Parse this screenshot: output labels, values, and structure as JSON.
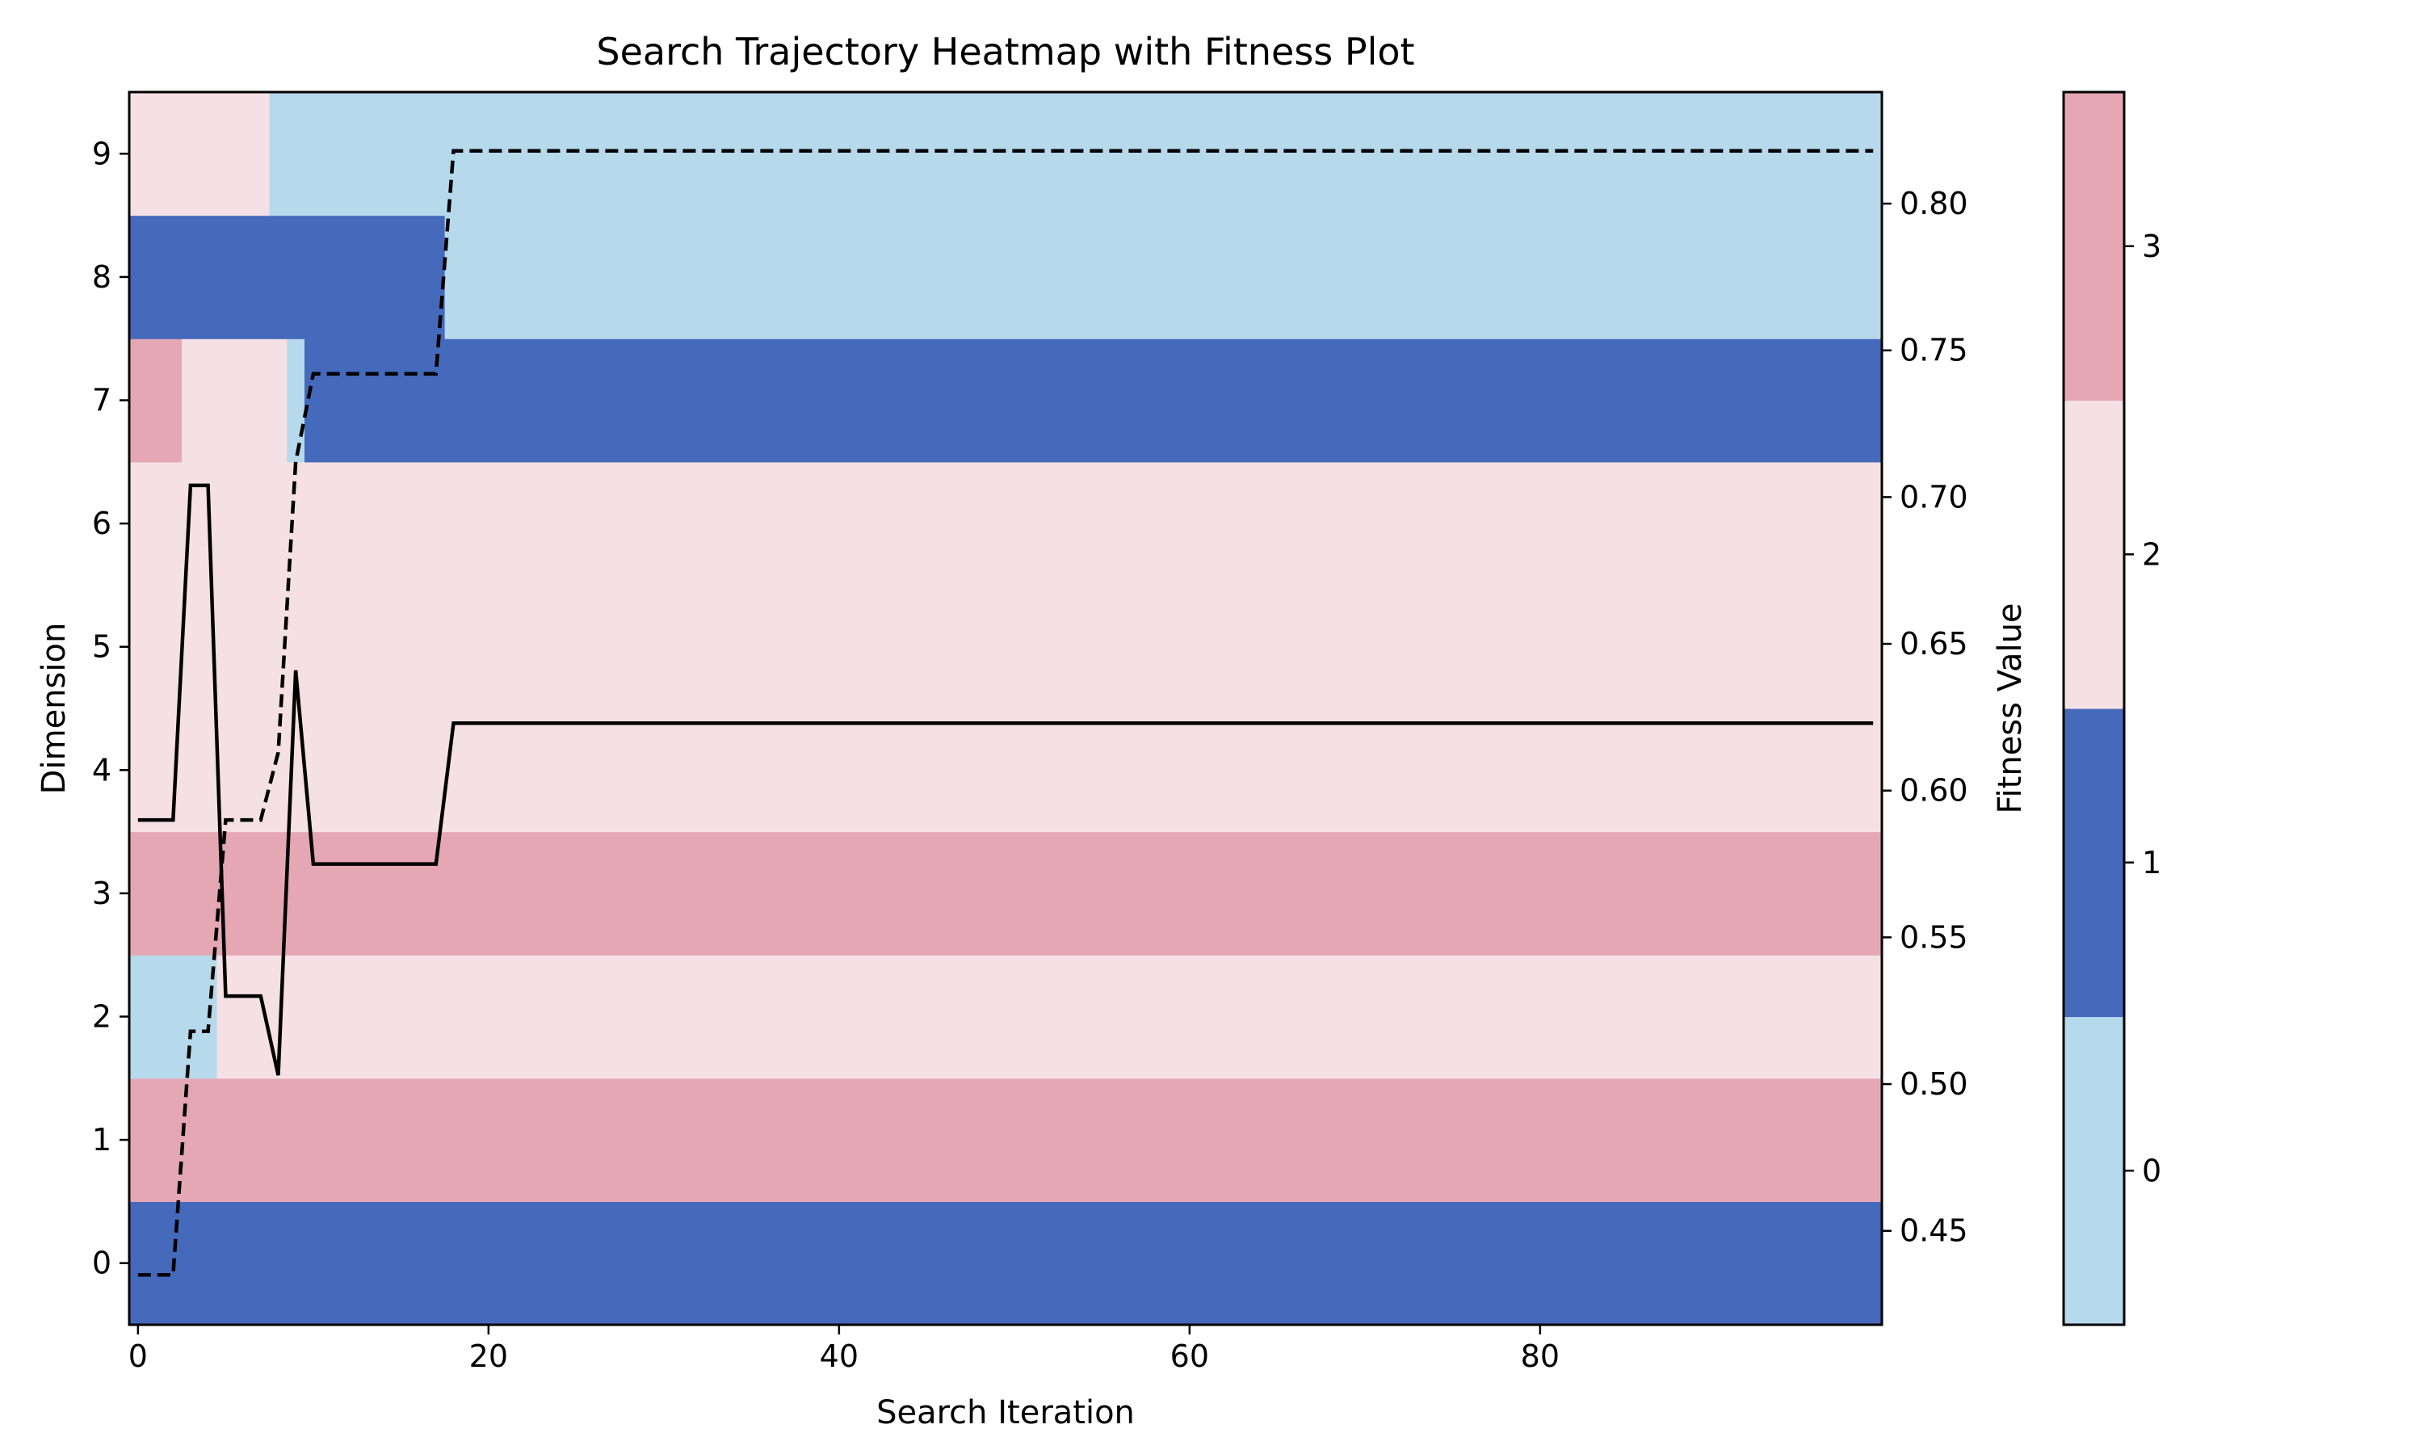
{
  "chart_data": {
    "type": "heatmap",
    "title": "Search Trajectory Heatmap with Fitness Plot",
    "xlabel": "Search Iteration",
    "ylabel": "Dimension",
    "y2label": "Fitness Value",
    "xlim": [
      -0.5,
      99.5
    ],
    "ylim": [
      -0.5,
      9.5
    ],
    "y2lim": [
      0.418,
      0.838
    ],
    "x_ticks": [
      0,
      20,
      40,
      60,
      80
    ],
    "y_ticks": [
      0,
      1,
      2,
      3,
      4,
      5,
      6,
      7,
      8,
      9
    ],
    "y2_ticks": [
      0.45,
      0.5,
      0.55,
      0.6,
      0.65,
      0.7,
      0.75,
      0.8
    ],
    "y2_tick_labels": [
      "0.45",
      "0.50",
      "0.55",
      "0.60",
      "0.65",
      "0.70",
      "0.75",
      "0.80"
    ],
    "colors": {
      "0": "#b6d9eb",
      "1": "#4569bb",
      "2": "#f5e0e6",
      "3": "#e5a7b4"
    },
    "colorbar": {
      "ticks": [
        0,
        1,
        2,
        3
      ],
      "range": [
        -0.5,
        3.5
      ]
    },
    "heatmap_runs": [
      {
        "dimension": 0,
        "runs": [
          {
            "start": 0,
            "end": 99,
            "value": 1
          }
        ]
      },
      {
        "dimension": 1,
        "runs": [
          {
            "start": 0,
            "end": 99,
            "value": 3
          }
        ]
      },
      {
        "dimension": 2,
        "runs": [
          {
            "start": 0,
            "end": 4,
            "value": 0
          },
          {
            "start": 5,
            "end": 99,
            "value": 2
          }
        ]
      },
      {
        "dimension": 3,
        "runs": [
          {
            "start": 0,
            "end": 99,
            "value": 3
          }
        ]
      },
      {
        "dimension": 4,
        "runs": [
          {
            "start": 0,
            "end": 99,
            "value": 2
          }
        ]
      },
      {
        "dimension": 5,
        "runs": [
          {
            "start": 0,
            "end": 99,
            "value": 2
          }
        ]
      },
      {
        "dimension": 6,
        "runs": [
          {
            "start": 0,
            "end": 99,
            "value": 2
          }
        ]
      },
      {
        "dimension": 7,
        "runs": [
          {
            "start": 0,
            "end": 2,
            "value": 3
          },
          {
            "start": 3,
            "end": 8,
            "value": 2
          },
          {
            "start": 9,
            "end": 9,
            "value": 0
          },
          {
            "start": 10,
            "end": 99,
            "value": 1
          }
        ]
      },
      {
        "dimension": 8,
        "runs": [
          {
            "start": 0,
            "end": 17,
            "value": 1
          },
          {
            "start": 18,
            "end": 99,
            "value": 0
          }
        ]
      },
      {
        "dimension": 9,
        "runs": [
          {
            "start": 0,
            "end": 7,
            "value": 2
          },
          {
            "start": 8,
            "end": 99,
            "value": 0
          }
        ]
      }
    ],
    "series": [
      {
        "style": "solid",
        "points": [
          [
            0,
            0.59
          ],
          [
            1,
            0.59
          ],
          [
            2,
            0.59
          ],
          [
            3,
            0.704
          ],
          [
            4,
            0.704
          ],
          [
            5,
            0.53
          ],
          [
            6,
            0.53
          ],
          [
            7,
            0.53
          ],
          [
            8,
            0.503
          ],
          [
            9,
            0.641
          ],
          [
            10,
            0.575
          ],
          [
            11,
            0.575
          ],
          [
            12,
            0.575
          ],
          [
            13,
            0.575
          ],
          [
            14,
            0.575
          ],
          [
            15,
            0.575
          ],
          [
            16,
            0.575
          ],
          [
            17,
            0.575
          ],
          [
            18,
            0.623
          ],
          [
            99,
            0.623
          ]
        ]
      },
      {
        "style": "dashed",
        "points": [
          [
            0,
            0.435
          ],
          [
            1,
            0.435
          ],
          [
            2,
            0.435
          ],
          [
            3,
            0.518
          ],
          [
            4,
            0.518
          ],
          [
            5,
            0.59
          ],
          [
            6,
            0.59
          ],
          [
            7,
            0.59
          ],
          [
            8,
            0.613
          ],
          [
            9,
            0.712
          ],
          [
            10,
            0.742
          ],
          [
            11,
            0.742
          ],
          [
            12,
            0.742
          ],
          [
            13,
            0.742
          ],
          [
            14,
            0.742
          ],
          [
            15,
            0.742
          ],
          [
            16,
            0.742
          ],
          [
            17,
            0.742
          ],
          [
            18,
            0.818
          ],
          [
            99,
            0.818
          ]
        ]
      }
    ]
  }
}
